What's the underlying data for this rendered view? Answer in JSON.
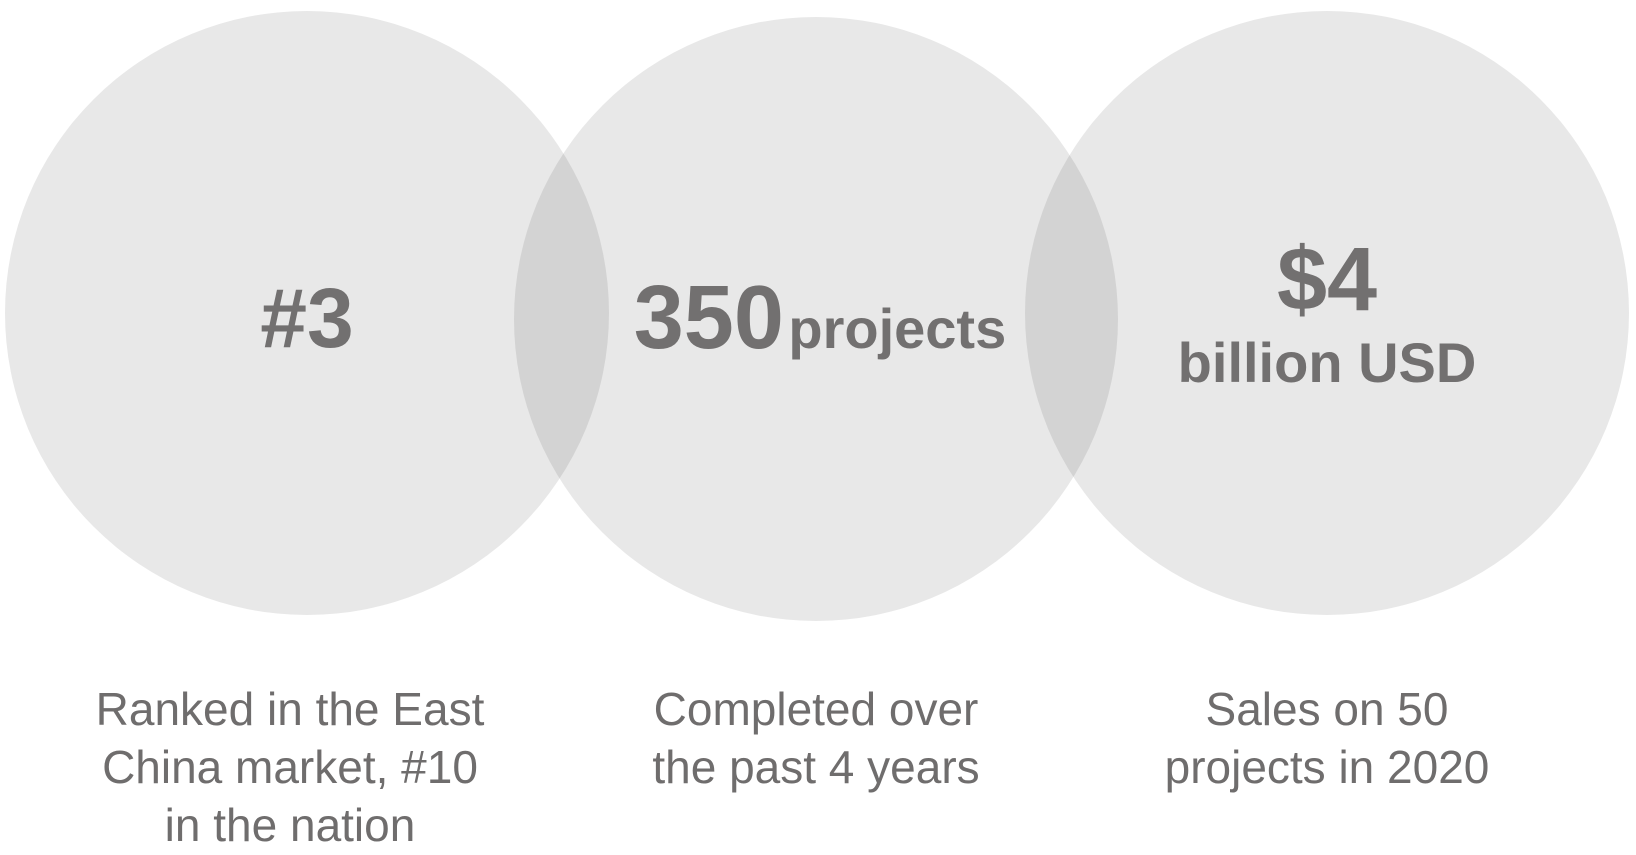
{
  "colors": {
    "circle_fill": "#e8e8e8",
    "overlap_fill": "#d3d3d3",
    "text": "#727070"
  },
  "stats": [
    {
      "value": "#3",
      "caption": "Ranked in the East China market, #10 in the nation"
    },
    {
      "value": "350",
      "unit": "projects",
      "caption": "Completed over the past 4 years"
    },
    {
      "value": "$4",
      "unit": "billion USD",
      "caption": "Sales on 50 projects in 2020"
    }
  ]
}
